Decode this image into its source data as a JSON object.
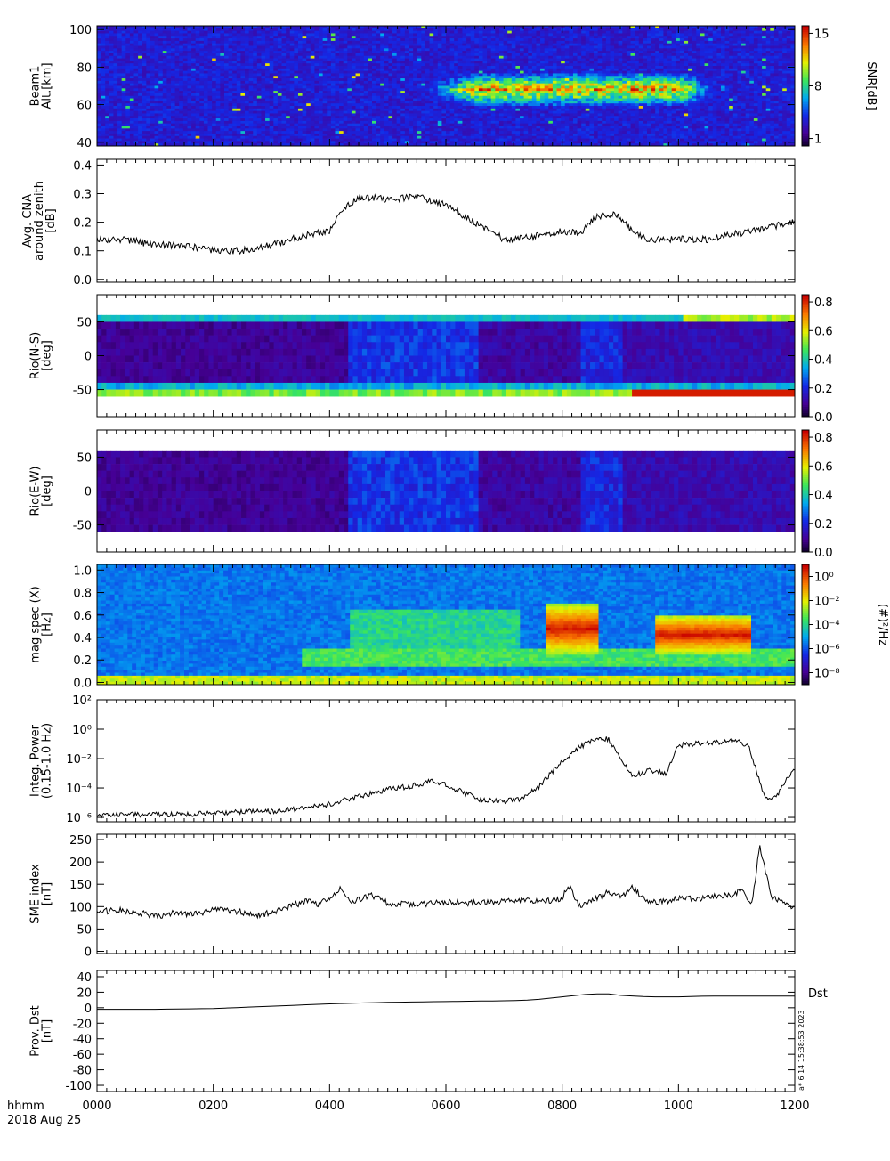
{
  "figure": {
    "time_axis": {
      "ticks": [
        "0000",
        "0200",
        "0400",
        "0600",
        "0800",
        "1000",
        "1200"
      ],
      "hours": [
        0,
        2,
        4,
        6,
        8,
        10,
        12
      ],
      "label_line1": "hhmm",
      "label_line2": "2018 Aug 25"
    },
    "stamp": "a* 6 14 15:38:53 2023"
  },
  "chart_data": [
    {
      "type": "heatmap",
      "ylabel_lines": [
        "Beam1",
        "Alt.[km]"
      ],
      "yticks": [
        "40",
        "60",
        "80",
        "100"
      ],
      "ytick_values": [
        40,
        60,
        80,
        100
      ],
      "ylim": [
        38,
        102
      ],
      "colorbar": {
        "label": "SNR[dB]",
        "ticks": [
          "1",
          "8",
          "15"
        ],
        "tick_values": [
          1,
          8,
          15
        ],
        "range": [
          0,
          16
        ]
      },
      "features": [
        {
          "name": "absorption layer",
          "t_start": 5.3,
          "t_end": 10.8,
          "alt_center": 68,
          "alt_halfwidth": 9,
          "peak_snr": 15
        }
      ]
    },
    {
      "type": "line",
      "ylabel_lines": [
        "Avg. CNA",
        "around zenith",
        "[dB]"
      ],
      "yticks": [
        "0.0",
        "0.1",
        "0.2",
        "0.3",
        "0.4"
      ],
      "ytick_values": [
        0.0,
        0.1,
        0.2,
        0.3,
        0.4
      ],
      "ylim": [
        -0.01,
        0.42
      ],
      "x": [
        0,
        0.5,
        1,
        1.5,
        2,
        2.5,
        3,
        3.5,
        4,
        4.2,
        4.5,
        5,
        5.5,
        6,
        6.5,
        7,
        7.5,
        8,
        8.3,
        8.6,
        8.9,
        9.2,
        9.5,
        10,
        10.5,
        11,
        11.5,
        12
      ],
      "y": [
        0.14,
        0.14,
        0.12,
        0.12,
        0.1,
        0.1,
        0.12,
        0.15,
        0.17,
        0.24,
        0.29,
        0.28,
        0.29,
        0.26,
        0.2,
        0.14,
        0.15,
        0.17,
        0.16,
        0.22,
        0.23,
        0.17,
        0.14,
        0.14,
        0.14,
        0.16,
        0.18,
        0.2
      ]
    },
    {
      "type": "heatmap",
      "ylabel_lines": [
        "Rio(N-S)",
        "[deg]"
      ],
      "yticks": [
        "-50",
        "0",
        "50"
      ],
      "ytick_values": [
        -50,
        0,
        50
      ],
      "ylim": [
        -90,
        90
      ],
      "beams": [
        55,
        45,
        35,
        25,
        15,
        5,
        -5,
        -15,
        -25,
        -35,
        -45,
        -55
      ],
      "colorbar": {
        "label": "",
        "ticks": [
          "0.0",
          "0.2",
          "0.4",
          "0.6",
          "0.8"
        ],
        "tick_values": [
          0,
          0.2,
          0.4,
          0.6,
          0.8
        ],
        "range": [
          0,
          0.85
        ]
      }
    },
    {
      "type": "heatmap",
      "ylabel_lines": [
        "Rio(E-W)",
        "[deg]"
      ],
      "yticks": [
        "-50",
        "0",
        "50"
      ],
      "ytick_values": [
        -50,
        0,
        50
      ],
      "ylim": [
        -90,
        90
      ],
      "beams": [
        55,
        45,
        35,
        25,
        15,
        5,
        -5,
        -15,
        -25,
        -35,
        -45,
        -55
      ],
      "colorbar": {
        "label": "",
        "ticks": [
          "0.0",
          "0.2",
          "0.4",
          "0.6",
          "0.8"
        ],
        "tick_values": [
          0,
          0.2,
          0.4,
          0.6,
          0.8
        ],
        "range": [
          0,
          0.85
        ]
      }
    },
    {
      "type": "heatmap",
      "ylabel_lines": [
        "mag spec (X)",
        "[Hz]"
      ],
      "yticks": [
        "0.0",
        "0.2",
        "0.4",
        "0.6",
        "0.8",
        "1.0"
      ],
      "ytick_values": [
        0.0,
        0.2,
        0.4,
        0.6,
        0.8,
        1.0
      ],
      "ylim": [
        -0.02,
        1.05
      ],
      "colorbar": {
        "label": "(#)²/Hz",
        "ticks": [
          "10⁰",
          "10⁻²",
          "10⁻⁴",
          "10⁻⁶",
          "10⁻⁸"
        ],
        "tick_values": [
          0,
          -2,
          -4,
          -6,
          -8
        ],
        "range": [
          -9,
          1
        ],
        "scale": "log"
      },
      "features": [
        {
          "name": "Pc1 band",
          "t_start": 7.7,
          "t_end": 8.6,
          "f_low": 0.25,
          "f_high": 0.7
        },
        {
          "name": "Pc1 band",
          "t_start": 9.6,
          "t_end": 11.2,
          "f_low": 0.25,
          "f_high": 0.6
        }
      ]
    },
    {
      "type": "line",
      "ylabel_lines": [
        "Integ. Power",
        "(0.15-1.0 Hz)"
      ],
      "yscale": "log",
      "yticks": [
        "10⁻⁶",
        "10⁻⁴",
        "10⁻²",
        "10⁰",
        "10²"
      ],
      "ytick_values": [
        -6,
        -4,
        -2,
        0,
        2
      ],
      "ylim": [
        -6.3,
        2
      ],
      "y_units": "log10",
      "x": [
        0,
        0.5,
        1,
        1.5,
        2,
        2.5,
        3,
        3.5,
        4,
        4.5,
        5,
        5.5,
        5.8,
        6,
        6.3,
        6.6,
        7,
        7.3,
        7.6,
        8,
        8.3,
        8.6,
        8.8,
        9,
        9.2,
        9.5,
        9.8,
        10,
        10.5,
        11,
        11.2,
        11.35,
        11.5,
        11.7,
        11.85,
        12
      ],
      "y": [
        -5.9,
        -5.8,
        -5.8,
        -5.8,
        -5.7,
        -5.6,
        -5.6,
        -5.4,
        -5.1,
        -4.6,
        -4.1,
        -3.8,
        -3.5,
        -3.8,
        -4.3,
        -4.8,
        -4.9,
        -4.7,
        -3.9,
        -2.2,
        -1.2,
        -0.6,
        -0.7,
        -2.0,
        -3.2,
        -2.8,
        -3.0,
        -1.1,
        -0.9,
        -0.8,
        -1.1,
        -3.0,
        -4.7,
        -4.5,
        -3.5,
        -2.8
      ]
    },
    {
      "type": "line",
      "ylabel_lines": [
        "SME index",
        "[nT]"
      ],
      "yticks": [
        "0",
        "50",
        "100",
        "150",
        "200",
        "250"
      ],
      "ytick_values": [
        0,
        50,
        100,
        150,
        200,
        250
      ],
      "ylim": [
        -5,
        262
      ],
      "x": [
        0,
        0.3,
        0.6,
        1,
        1.3,
        1.6,
        2,
        2.4,
        2.8,
        3,
        3.3,
        3.6,
        3.8,
        4,
        4.2,
        4.4,
        4.7,
        5,
        5.5,
        6,
        6.5,
        7,
        7.3,
        7.6,
        8,
        8.1,
        8.3,
        8.6,
        8.8,
        9,
        9.2,
        9.5,
        9.8,
        10,
        10.3,
        10.6,
        10.9,
        11.1,
        11.25,
        11.4,
        11.6,
        11.8,
        12
      ],
      "y": [
        88,
        92,
        90,
        78,
        85,
        82,
        92,
        90,
        80,
        88,
        100,
        112,
        105,
        118,
        140,
        110,
        125,
        108,
        105,
        110,
        108,
        112,
        115,
        110,
        118,
        150,
        100,
        118,
        135,
        120,
        142,
        108,
        112,
        120,
        118,
        122,
        125,
        140,
        100,
        235,
        120,
        108,
        95
      ]
    },
    {
      "type": "line",
      "ylabel_lines": [
        "Prov. Dst",
        "[nT]"
      ],
      "series_label": "Dst",
      "yticks": [
        "-100",
        "-80",
        "-60",
        "-40",
        "-20",
        "0",
        "20",
        "40"
      ],
      "ytick_values": [
        -100,
        -80,
        -60,
        -40,
        -20,
        0,
        20,
        40
      ],
      "ylim": [
        -108,
        48
      ],
      "x": [
        0,
        1,
        2,
        3,
        4,
        5,
        6,
        7,
        7.5,
        8,
        8.5,
        8.8,
        9,
        9.5,
        10,
        10.5,
        11,
        11.5,
        12
      ],
      "y": [
        -2,
        -2,
        -1,
        2,
        5,
        7,
        8,
        9,
        10,
        14,
        18,
        18,
        16,
        14,
        14,
        15,
        15,
        15,
        15
      ]
    }
  ]
}
